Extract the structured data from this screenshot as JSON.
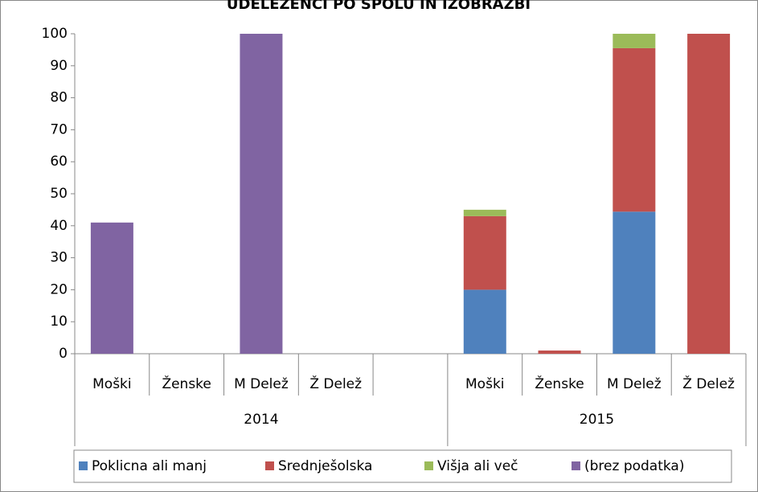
{
  "chart_data": {
    "type": "stacked_bar",
    "title": "UDELEŽENCI PO SPOLU IN IZOBRAZBI",
    "groups": [
      {
        "name": "2014",
        "categories": [
          "Moški",
          "Ženske",
          "M Delež",
          "Ž Delež",
          null
        ]
      },
      {
        "name": "2015",
        "categories": [
          "Moški",
          "Ženske",
          "M Delež",
          "Ž Delež"
        ]
      }
    ],
    "series": [
      {
        "name": "Poklicna ali manj",
        "color": "#4f81bd",
        "values": [
          0,
          0,
          0,
          0,
          null,
          20,
          0,
          44.4,
          0
        ]
      },
      {
        "name": "Srednješolska",
        "color": "#c0504d",
        "values": [
          0,
          0,
          0,
          0,
          null,
          23,
          1,
          51.1,
          100
        ]
      },
      {
        "name": "Višja ali več",
        "color": "#9bbb59",
        "values": [
          0,
          0,
          0,
          0,
          null,
          2,
          0,
          4.5,
          0
        ]
      },
      {
        "name": "(brez podatka)",
        "color": "#8064a2",
        "values": [
          41,
          0,
          100,
          0,
          null,
          0,
          0,
          0,
          0
        ]
      }
    ],
    "ylim": [
      0,
      100
    ],
    "yticks": [
      0,
      10,
      20,
      30,
      40,
      50,
      60,
      70,
      80,
      90,
      100
    ],
    "legend": "bottom",
    "grid": false
  }
}
